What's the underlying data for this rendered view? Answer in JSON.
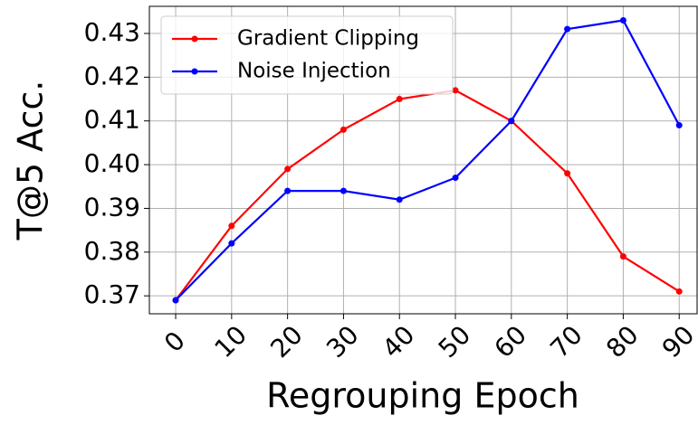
{
  "chart_data": {
    "type": "line",
    "xlabel": "Regrouping Epoch",
    "ylabel": "T@5 Acc.",
    "x": [
      0,
      10,
      20,
      30,
      40,
      50,
      60,
      70,
      80,
      90
    ],
    "series": [
      {
        "name": "Gradient Clipping",
        "color": "#ff0000",
        "values": [
          0.369,
          0.386,
          0.399,
          0.408,
          0.415,
          0.417,
          0.41,
          0.398,
          0.379,
          0.371
        ]
      },
      {
        "name": "Noise Injection",
        "color": "#0000ff",
        "values": [
          0.369,
          0.382,
          0.394,
          0.394,
          0.392,
          0.397,
          0.41,
          0.431,
          0.433,
          0.409
        ]
      }
    ],
    "xlim": [
      -4.7,
      93.2
    ],
    "xticks": [
      0,
      10,
      20,
      30,
      40,
      50,
      60,
      70,
      80,
      90
    ],
    "ylim": [
      0.3659,
      0.4362
    ],
    "yticks": [
      0.37,
      0.38,
      0.39,
      {
        "value": 0.4,
        "label": "0.40"
      },
      0.41,
      0.42,
      0.43
    ],
    "grid": true,
    "legend": "upper left"
  }
}
